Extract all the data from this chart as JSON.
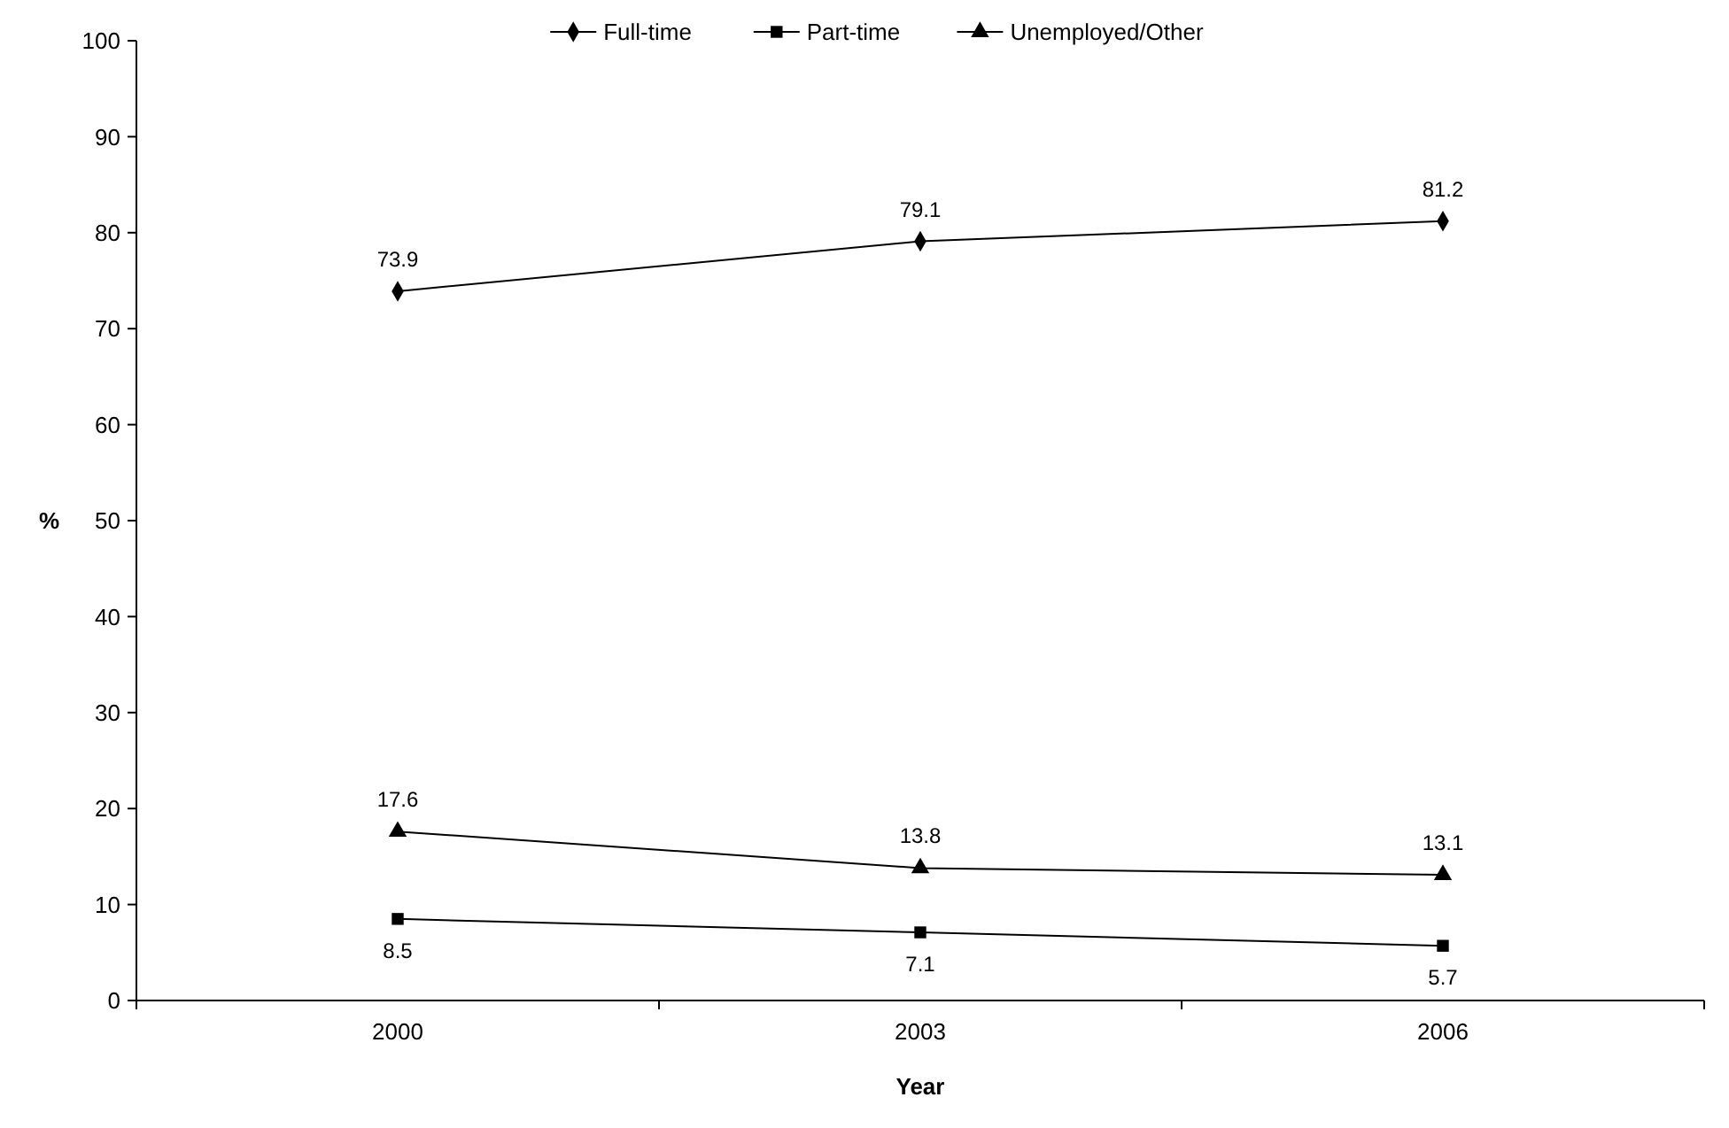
{
  "chart_data": {
    "type": "line",
    "xlabel": "Year",
    "ylabel": "%",
    "categories": [
      "2000",
      "2003",
      "2006"
    ],
    "series": [
      {
        "name": "Full-time",
        "color": "#000000",
        "marker": "diamond",
        "values": [
          73.9,
          79.1,
          81.2
        ]
      },
      {
        "name": "Part-time",
        "color": "#000000",
        "marker": "square",
        "values": [
          8.5,
          7.1,
          5.7
        ]
      },
      {
        "name": "Unemployed/Other",
        "color": "#000000",
        "marker": "triangle",
        "values": [
          17.6,
          13.8,
          13.1
        ]
      }
    ],
    "ylim": [
      0,
      100
    ],
    "yticks": [
      0,
      10,
      20,
      30,
      40,
      50,
      60,
      70,
      80,
      90,
      100
    ],
    "grid": false,
    "legend": "top",
    "data_labels": true,
    "line_style": "solid"
  }
}
